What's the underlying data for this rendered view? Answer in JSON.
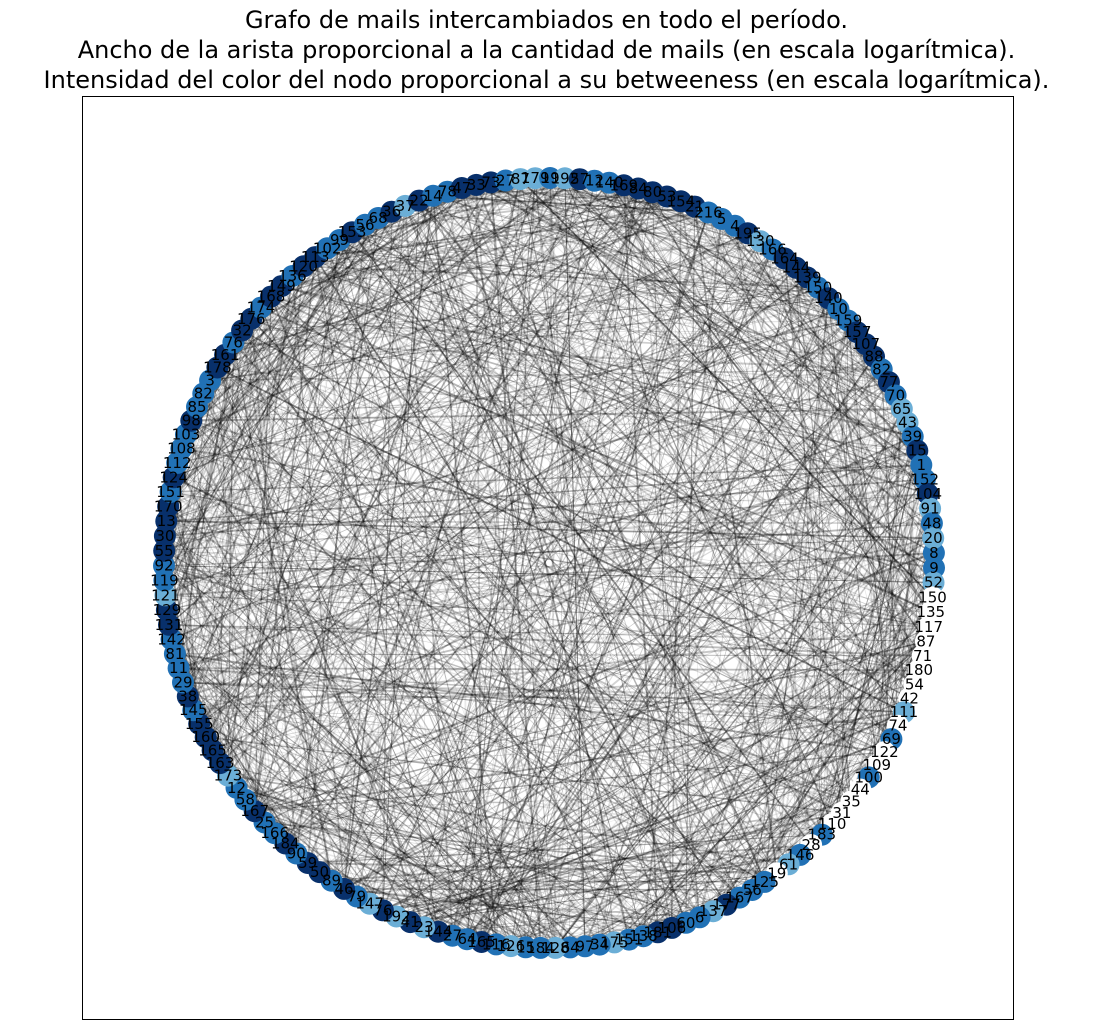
{
  "title_lines": [
    "Grafo de mails intercambiados en todo el período.",
    "Ancho de la arista proporcional a la cantidad de mails (en escala logarítmica).",
    "Intensidad del color del nodo proporcional a su betweeness (en escala logarítmica)."
  ],
  "layout": "circular",
  "node_color_map": [
    "#c6dbef",
    "#6baed6",
    "#2171b5",
    "#08306b"
  ],
  "edge_color": "#000000",
  "node_labels": [
    "8",
    "9",
    "52",
    "150",
    "135",
    "117",
    "87",
    "71",
    "180",
    "54",
    "42",
    "111",
    "74",
    "69",
    "122",
    "109",
    "100",
    "44",
    "35",
    "31",
    "110",
    "183",
    "28",
    "146",
    "61",
    "19",
    "125",
    "56",
    "167",
    "177",
    "137",
    "6",
    "60",
    "106",
    "181",
    "138",
    "151",
    "175",
    "34",
    "97",
    "64",
    "128",
    "184",
    "15",
    "126",
    "116",
    "165",
    "64",
    "27",
    "144",
    "23",
    "41",
    "192",
    "76",
    "147",
    "79",
    "46",
    "89",
    "50",
    "59",
    "90",
    "184",
    "166",
    "25",
    "167",
    "58",
    "12",
    "173",
    "163",
    "165",
    "160",
    "155",
    "145",
    "38",
    "29",
    "11",
    "81",
    "142",
    "131",
    "129",
    "121",
    "119",
    "92",
    "55",
    "30",
    "13",
    "170",
    "151",
    "124",
    "112",
    "108",
    "103",
    "98",
    "85",
    "82",
    "3",
    "178",
    "161",
    "76",
    "32",
    "176",
    "174",
    "168",
    "149",
    "136",
    "120",
    "113",
    "102",
    "99",
    "153",
    "56",
    "68",
    "36",
    "37",
    "22",
    "14",
    "78",
    "47",
    "33",
    "73",
    "27",
    "87",
    "179",
    "19",
    "192",
    "57",
    "12",
    "140",
    "169",
    "84",
    "80",
    "53",
    "154",
    "21",
    "216",
    "5",
    "4",
    "195",
    "130",
    "166",
    "164",
    "144",
    "139",
    "150",
    "140",
    "10",
    "159",
    "157",
    "107",
    "88",
    "82",
    "77",
    "70",
    "65",
    "43",
    "39",
    "15",
    "1",
    "152",
    "104",
    "91",
    "48",
    "20"
  ]
}
